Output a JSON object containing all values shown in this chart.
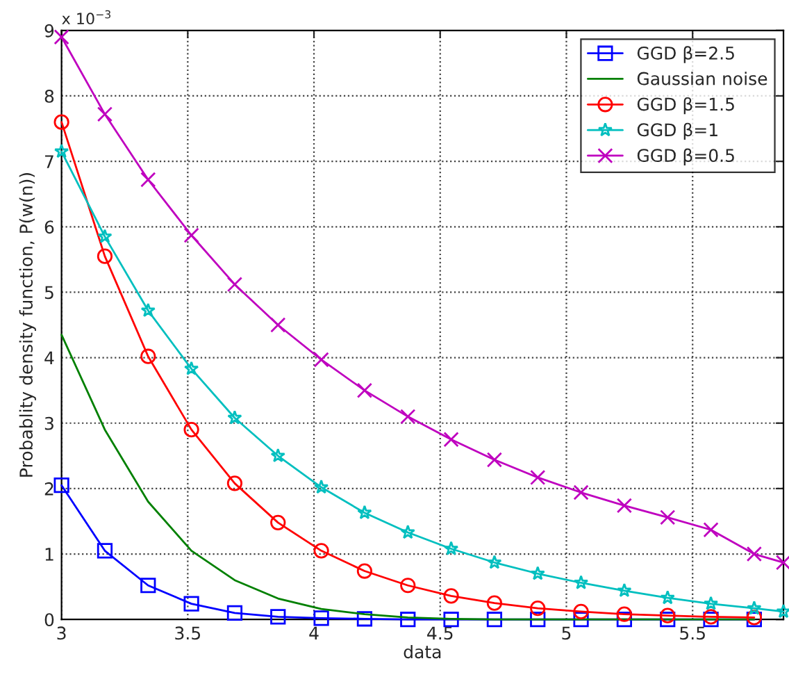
{
  "chart_data": {
    "type": "line",
    "x": [
      3,
      3.1715,
      3.343,
      3.5145,
      3.686,
      3.8575,
      4.029,
      4.2005,
      4.372,
      4.5435,
      4.715,
      4.8865,
      5.058,
      5.2295,
      5.401,
      5.5725,
      5.744
    ],
    "xlabel": "data",
    "ylabel": "Probablity density function, P(w(n))",
    "xlim": [
      3,
      5.86
    ],
    "xticks": [
      3,
      3.5,
      4,
      4.5,
      5,
      5.5
    ],
    "ylim": [
      0,
      9
    ],
    "yticks": [
      0,
      1,
      2,
      3,
      4,
      5,
      6,
      7,
      8,
      9
    ],
    "annotations": [
      "x 10$^{−3}$"
    ],
    "grid": true,
    "legend": "top right",
    "line_style": "solid",
    "series": [
      {
        "name": "GGD β=2.5",
        "color": "#0000ff",
        "marker": "square",
        "values": [
          2.05,
          1.05,
          0.52,
          0.24,
          0.1,
          0.04,
          0.02,
          0.01,
          0,
          0,
          0,
          0,
          0,
          0,
          0,
          0,
          0
        ]
      },
      {
        "name": "Gaussian noise",
        "color": "#008000",
        "marker": "none",
        "values": [
          4.35,
          2.9,
          1.8,
          1.05,
          0.6,
          0.32,
          0.16,
          0.08,
          0.03,
          0.01,
          0,
          0,
          0,
          0,
          0,
          0,
          0
        ]
      },
      {
        "name": "GGD β=1.5",
        "color": "#ff0000",
        "marker": "circle",
        "values": [
          7.6,
          5.55,
          4.02,
          2.9,
          2.08,
          1.48,
          1.05,
          0.74,
          0.52,
          0.36,
          0.25,
          0.17,
          0.12,
          0.08,
          0.06,
          0.04,
          0.03
        ]
      },
      {
        "name": "GGD β=1",
        "color": "#00bfbf",
        "marker": "star",
        "x": [
          3,
          3.1715,
          3.343,
          3.5145,
          3.686,
          3.8575,
          4.029,
          4.2005,
          4.372,
          4.5435,
          4.715,
          4.8865,
          5.058,
          5.2295,
          5.401,
          5.5725,
          5.744,
          5.86
        ],
        "values": [
          7.15,
          5.85,
          4.72,
          3.83,
          3.08,
          2.5,
          2.02,
          1.63,
          1.33,
          1.08,
          0.87,
          0.7,
          0.56,
          0.44,
          0.33,
          0.24,
          0.17,
          0.12
        ]
      },
      {
        "name": "GGD β=0.5",
        "color": "#bf00bf",
        "marker": "cross",
        "x": [
          3,
          3.1715,
          3.343,
          3.5145,
          3.686,
          3.8575,
          4.029,
          4.2005,
          4.372,
          4.5435,
          4.715,
          4.8865,
          5.058,
          5.2295,
          5.401,
          5.5725,
          5.744,
          5.86
        ],
        "values": [
          8.9,
          7.72,
          6.72,
          5.87,
          5.12,
          4.5,
          3.97,
          3.5,
          3.1,
          2.75,
          2.44,
          2.17,
          1.94,
          1.74,
          1.56,
          1.37,
          1.0,
          0.87
        ]
      }
    ]
  }
}
